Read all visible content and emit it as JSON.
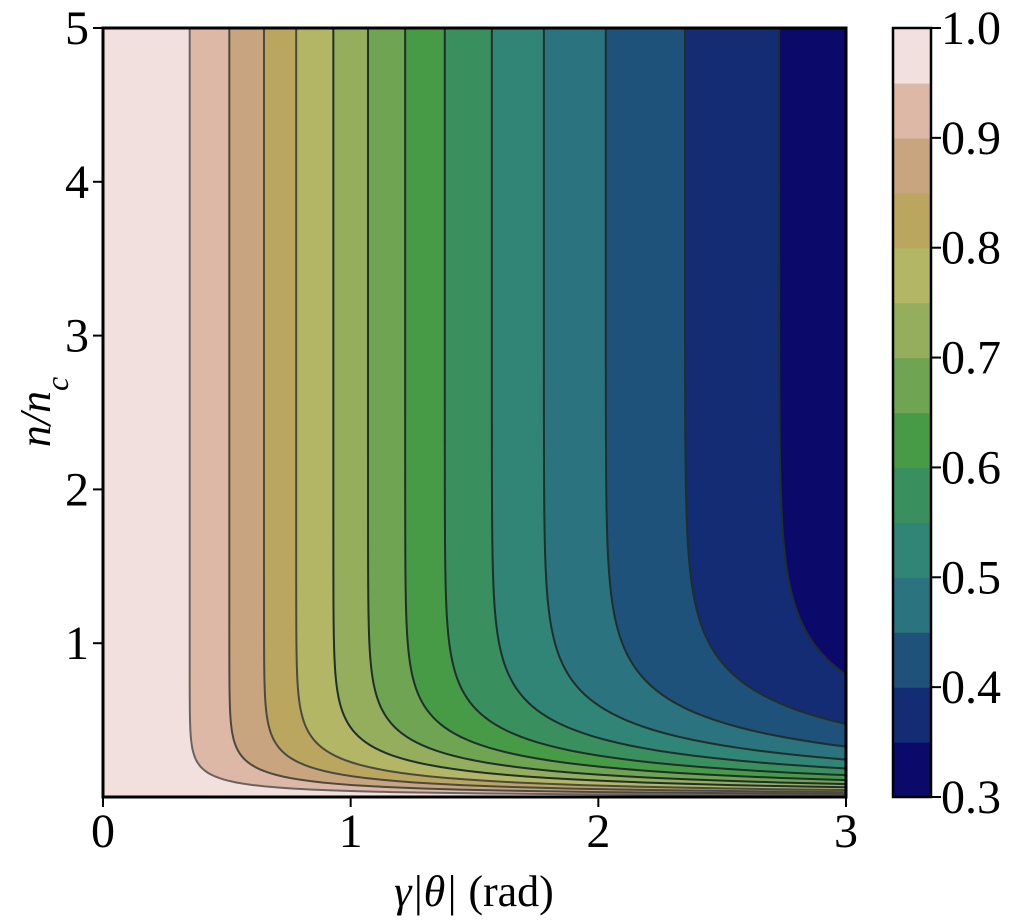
{
  "chart_data": {
    "type": "contour",
    "title": "",
    "xlabel_math": "γ|θ|",
    "xlabel_unit": " (rad)",
    "ylabel_math": "n/n",
    "ylabel_sub": "c",
    "xlim": [
      0,
      3
    ],
    "ylim": [
      0,
      5
    ],
    "x_ticks": [
      "0",
      "1",
      "2",
      "3"
    ],
    "y_ticks": [
      "1",
      "2",
      "3",
      "4",
      "5"
    ],
    "x_tick_values": [
      0,
      1,
      2,
      3
    ],
    "y_tick_values": [
      1,
      2,
      3,
      4,
      5
    ],
    "colorbar": {
      "range": [
        0.3,
        1.0
      ],
      "tick_labels": [
        "0.3",
        "0.4",
        "0.5",
        "0.6",
        "0.7",
        "0.8",
        "0.9",
        "1.0"
      ],
      "tick_values": [
        0.3,
        0.4,
        0.5,
        0.6,
        0.7,
        0.8,
        0.9,
        1.0
      ],
      "levels": [
        0.3,
        0.35,
        0.4,
        0.45,
        0.5,
        0.55,
        0.6,
        0.65,
        0.7,
        0.75,
        0.8,
        0.85,
        0.9,
        0.95,
        1.0
      ],
      "colors": [
        "#0b0a6b",
        "#142c74",
        "#1f527b",
        "#2b737f",
        "#318577",
        "#3a8f5e",
        "#479b47",
        "#6fa452",
        "#94ae5e",
        "#b2b665",
        "#bba660",
        "#c9a57f",
        "#deb8a6",
        "#f2e0de"
      ],
      "colormap": "gist_earth"
    },
    "contour_line_x_at_top": [
      0.35,
      0.51,
      0.65,
      0.78,
      0.93,
      1.07,
      1.22,
      1.38,
      1.57,
      1.78,
      2.03,
      2.35,
      2.73
    ],
    "contour_line_x_at_bottom_label": "lines bend toward n→0 and converge near x=3",
    "description_grid": false
  }
}
